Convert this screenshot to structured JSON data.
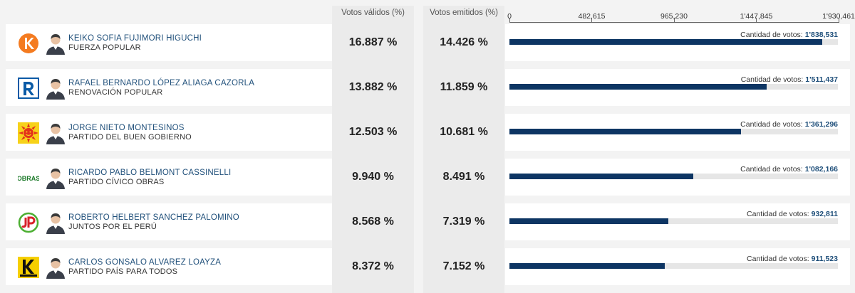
{
  "header": {
    "votos_validos_label": "Votos válidos (%)",
    "votos_emitidos_label": "Votos emitidos (%)"
  },
  "axis": {
    "max": 1930461,
    "ticks": [
      {
        "value": 0,
        "label": "0"
      },
      {
        "value": 482615,
        "label": "482,615"
      },
      {
        "value": 965230,
        "label": "965,230"
      },
      {
        "value": 1447845,
        "label": "1'447,845"
      },
      {
        "value": 1930461,
        "label": "1'930,461"
      }
    ]
  },
  "votes_label": "Cantidad de votos:",
  "colors": {
    "bar": "#0d3563",
    "track": "#e6e6e6",
    "name": "#1f4f7a"
  },
  "candidates": [
    {
      "name": "KEIKO SOFIA FUJIMORI HIGUCHI",
      "party": "FUERZA POPULAR",
      "valid_pct": "16.887 %",
      "emit_pct": "14.426 %",
      "votes_label": "1'838,531",
      "votes": 1838531,
      "logo_icon": "fuerza-popular-logo",
      "photo_icon": "candidate-photo"
    },
    {
      "name": "RAFAEL BERNARDO LÓPEZ ALIAGA CAZORLA",
      "party": "RENOVACIÓN POPULAR",
      "valid_pct": "13.882 %",
      "emit_pct": "11.859 %",
      "votes_label": "1'511,437",
      "votes": 1511437,
      "logo_icon": "renovacion-popular-logo",
      "photo_icon": "candidate-photo"
    },
    {
      "name": "JORGE NIETO MONTESINOS",
      "party": "PARTIDO DEL BUEN GOBIERNO",
      "valid_pct": "12.503 %",
      "emit_pct": "10.681 %",
      "votes_label": "1'361,296",
      "votes": 1361296,
      "logo_icon": "buen-gobierno-sun-logo",
      "photo_icon": "candidate-photo"
    },
    {
      "name": "RICARDO PABLO BELMONT CASSINELLI",
      "party": "PARTIDO CÍVICO OBRAS",
      "valid_pct": "9.940 %",
      "emit_pct": "8.491 %",
      "votes_label": "1'082,166",
      "votes": 1082166,
      "logo_icon": "obras-logo",
      "photo_icon": "candidate-photo"
    },
    {
      "name": "ROBERTO HELBERT SANCHEZ PALOMINO",
      "party": "JUNTOS POR EL PERÚ",
      "valid_pct": "8.568 %",
      "emit_pct": "7.319 %",
      "votes_label": "932,811",
      "votes": 932811,
      "logo_icon": "juntos-por-el-peru-logo",
      "photo_icon": "candidate-photo"
    },
    {
      "name": "CARLOS GONSALO ALVAREZ LOAYZA",
      "party": "PARTIDO PAÍS PARA TODOS",
      "valid_pct": "8.372 %",
      "emit_pct": "7.152 %",
      "votes_label": "911,523",
      "votes": 911523,
      "logo_icon": "pais-para-todos-logo",
      "photo_icon": "candidate-photo"
    }
  ],
  "chart_data": {
    "type": "bar",
    "orientation": "horizontal",
    "categories": [
      "KEIKO SOFIA FUJIMORI HIGUCHI",
      "RAFAEL BERNARDO LÓPEZ ALIAGA CAZORLA",
      "JORGE NIETO MONTESINOS",
      "RICARDO PABLO BELMONT CASSINELLI",
      "ROBERTO HELBERT SANCHEZ PALOMINO",
      "CARLOS GONSALO ALVAREZ LOAYZA"
    ],
    "values": [
      1838531,
      1511437,
      1361296,
      1082166,
      932811,
      911523
    ],
    "xlim": [
      0,
      1930461
    ],
    "xticks": [
      "0",
      "482,615",
      "965,230",
      "1'447,845",
      "1'930,461"
    ],
    "grid": false
  }
}
